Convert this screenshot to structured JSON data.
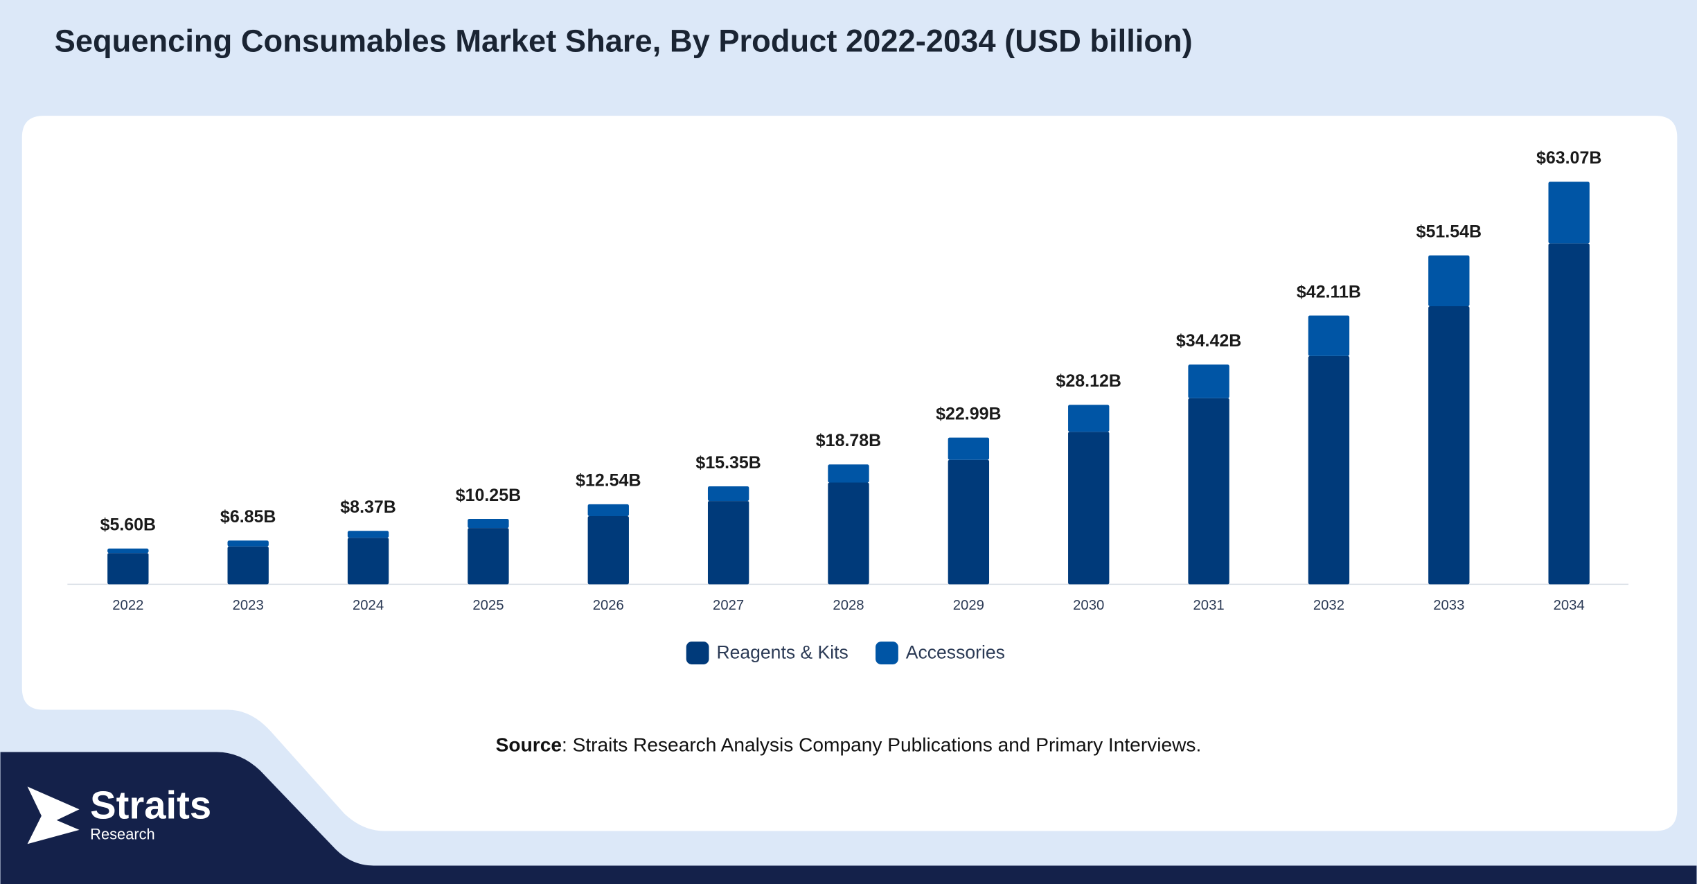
{
  "chart_data": {
    "type": "bar",
    "stacked": true,
    "title": "Sequencing Consumables Market Share, By Product 2022-2034 (USD billion)",
    "categories": [
      "2022",
      "2023",
      "2024",
      "2025",
      "2026",
      "2027",
      "2028",
      "2029",
      "2030",
      "2031",
      "2032",
      "2033",
      "2034"
    ],
    "series": [
      {
        "name": "Reagents & Kits",
        "color": "#003a7a",
        "values": [
          4.9,
          5.93,
          7.29,
          8.82,
          10.68,
          13.06,
          15.94,
          19.5,
          23.9,
          29.16,
          35.77,
          43.57,
          53.41
        ]
      },
      {
        "name": "Accessories",
        "color": "#0055a5",
        "values": [
          0.7,
          0.92,
          1.08,
          1.43,
          1.86,
          2.29,
          2.84,
          3.49,
          4.22,
          5.26,
          6.34,
          7.97,
          9.66
        ]
      }
    ],
    "totals": {
      "values": [
        5.6,
        6.85,
        8.37,
        10.25,
        12.54,
        15.35,
        18.78,
        22.99,
        28.12,
        34.42,
        42.11,
        51.54,
        63.07
      ],
      "value_labels": [
        "$5.60B",
        "$6.85B",
        "$8.37B",
        "$10.25B",
        "$12.54B",
        "$15.35B",
        "$18.78B",
        "$22.99B",
        "$28.12B",
        "$34.42B",
        "$42.11B",
        "$51.54B",
        "$63.07B"
      ]
    }
  },
  "source": {
    "label": "Source",
    "text": ": Straits Research Analysis Company Publications and Primary Interviews."
  },
  "logo": {
    "name": "Straits",
    "subtitle": "Research"
  }
}
